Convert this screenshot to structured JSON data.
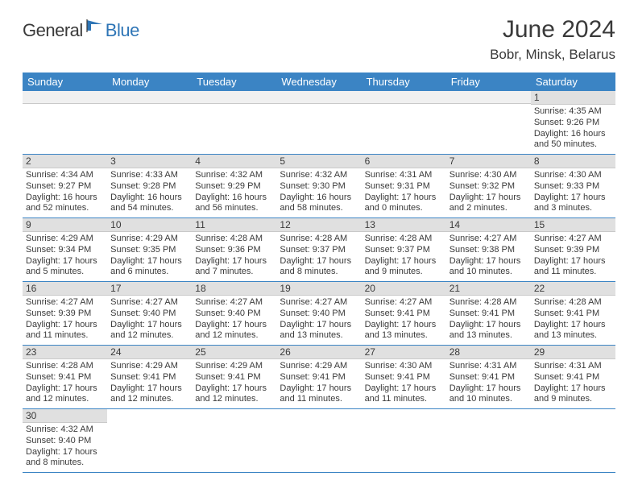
{
  "logo": {
    "general": "General",
    "blue": "Blue"
  },
  "title": "June 2024",
  "location": "Bobr, Minsk, Belarus",
  "colors": {
    "header_bg": "#3b84c4",
    "header_text": "#ffffff",
    "daynum_bg": "#e0e0e0",
    "text": "#3a3a3a",
    "rule": "#3b84c4",
    "logo_blue": "#2e75b6"
  },
  "weekdays": [
    "Sunday",
    "Monday",
    "Tuesday",
    "Wednesday",
    "Thursday",
    "Friday",
    "Saturday"
  ],
  "weeks": [
    [
      null,
      null,
      null,
      null,
      null,
      null,
      {
        "n": "1",
        "sunrise": "Sunrise: 4:35 AM",
        "sunset": "Sunset: 9:26 PM",
        "day1": "Daylight: 16 hours",
        "day2": "and 50 minutes."
      }
    ],
    [
      {
        "n": "2",
        "sunrise": "Sunrise: 4:34 AM",
        "sunset": "Sunset: 9:27 PM",
        "day1": "Daylight: 16 hours",
        "day2": "and 52 minutes."
      },
      {
        "n": "3",
        "sunrise": "Sunrise: 4:33 AM",
        "sunset": "Sunset: 9:28 PM",
        "day1": "Daylight: 16 hours",
        "day2": "and 54 minutes."
      },
      {
        "n": "4",
        "sunrise": "Sunrise: 4:32 AM",
        "sunset": "Sunset: 9:29 PM",
        "day1": "Daylight: 16 hours",
        "day2": "and 56 minutes."
      },
      {
        "n": "5",
        "sunrise": "Sunrise: 4:32 AM",
        "sunset": "Sunset: 9:30 PM",
        "day1": "Daylight: 16 hours",
        "day2": "and 58 minutes."
      },
      {
        "n": "6",
        "sunrise": "Sunrise: 4:31 AM",
        "sunset": "Sunset: 9:31 PM",
        "day1": "Daylight: 17 hours",
        "day2": "and 0 minutes."
      },
      {
        "n": "7",
        "sunrise": "Sunrise: 4:30 AM",
        "sunset": "Sunset: 9:32 PM",
        "day1": "Daylight: 17 hours",
        "day2": "and 2 minutes."
      },
      {
        "n": "8",
        "sunrise": "Sunrise: 4:30 AM",
        "sunset": "Sunset: 9:33 PM",
        "day1": "Daylight: 17 hours",
        "day2": "and 3 minutes."
      }
    ],
    [
      {
        "n": "9",
        "sunrise": "Sunrise: 4:29 AM",
        "sunset": "Sunset: 9:34 PM",
        "day1": "Daylight: 17 hours",
        "day2": "and 5 minutes."
      },
      {
        "n": "10",
        "sunrise": "Sunrise: 4:29 AM",
        "sunset": "Sunset: 9:35 PM",
        "day1": "Daylight: 17 hours",
        "day2": "and 6 minutes."
      },
      {
        "n": "11",
        "sunrise": "Sunrise: 4:28 AM",
        "sunset": "Sunset: 9:36 PM",
        "day1": "Daylight: 17 hours",
        "day2": "and 7 minutes."
      },
      {
        "n": "12",
        "sunrise": "Sunrise: 4:28 AM",
        "sunset": "Sunset: 9:37 PM",
        "day1": "Daylight: 17 hours",
        "day2": "and 8 minutes."
      },
      {
        "n": "13",
        "sunrise": "Sunrise: 4:28 AM",
        "sunset": "Sunset: 9:37 PM",
        "day1": "Daylight: 17 hours",
        "day2": "and 9 minutes."
      },
      {
        "n": "14",
        "sunrise": "Sunrise: 4:27 AM",
        "sunset": "Sunset: 9:38 PM",
        "day1": "Daylight: 17 hours",
        "day2": "and 10 minutes."
      },
      {
        "n": "15",
        "sunrise": "Sunrise: 4:27 AM",
        "sunset": "Sunset: 9:39 PM",
        "day1": "Daylight: 17 hours",
        "day2": "and 11 minutes."
      }
    ],
    [
      {
        "n": "16",
        "sunrise": "Sunrise: 4:27 AM",
        "sunset": "Sunset: 9:39 PM",
        "day1": "Daylight: 17 hours",
        "day2": "and 11 minutes."
      },
      {
        "n": "17",
        "sunrise": "Sunrise: 4:27 AM",
        "sunset": "Sunset: 9:40 PM",
        "day1": "Daylight: 17 hours",
        "day2": "and 12 minutes."
      },
      {
        "n": "18",
        "sunrise": "Sunrise: 4:27 AM",
        "sunset": "Sunset: 9:40 PM",
        "day1": "Daylight: 17 hours",
        "day2": "and 12 minutes."
      },
      {
        "n": "19",
        "sunrise": "Sunrise: 4:27 AM",
        "sunset": "Sunset: 9:40 PM",
        "day1": "Daylight: 17 hours",
        "day2": "and 13 minutes."
      },
      {
        "n": "20",
        "sunrise": "Sunrise: 4:27 AM",
        "sunset": "Sunset: 9:41 PM",
        "day1": "Daylight: 17 hours",
        "day2": "and 13 minutes."
      },
      {
        "n": "21",
        "sunrise": "Sunrise: 4:28 AM",
        "sunset": "Sunset: 9:41 PM",
        "day1": "Daylight: 17 hours",
        "day2": "and 13 minutes."
      },
      {
        "n": "22",
        "sunrise": "Sunrise: 4:28 AM",
        "sunset": "Sunset: 9:41 PM",
        "day1": "Daylight: 17 hours",
        "day2": "and 13 minutes."
      }
    ],
    [
      {
        "n": "23",
        "sunrise": "Sunrise: 4:28 AM",
        "sunset": "Sunset: 9:41 PM",
        "day1": "Daylight: 17 hours",
        "day2": "and 12 minutes."
      },
      {
        "n": "24",
        "sunrise": "Sunrise: 4:29 AM",
        "sunset": "Sunset: 9:41 PM",
        "day1": "Daylight: 17 hours",
        "day2": "and 12 minutes."
      },
      {
        "n": "25",
        "sunrise": "Sunrise: 4:29 AM",
        "sunset": "Sunset: 9:41 PM",
        "day1": "Daylight: 17 hours",
        "day2": "and 12 minutes."
      },
      {
        "n": "26",
        "sunrise": "Sunrise: 4:29 AM",
        "sunset": "Sunset: 9:41 PM",
        "day1": "Daylight: 17 hours",
        "day2": "and 11 minutes."
      },
      {
        "n": "27",
        "sunrise": "Sunrise: 4:30 AM",
        "sunset": "Sunset: 9:41 PM",
        "day1": "Daylight: 17 hours",
        "day2": "and 11 minutes."
      },
      {
        "n": "28",
        "sunrise": "Sunrise: 4:31 AM",
        "sunset": "Sunset: 9:41 PM",
        "day1": "Daylight: 17 hours",
        "day2": "and 10 minutes."
      },
      {
        "n": "29",
        "sunrise": "Sunrise: 4:31 AM",
        "sunset": "Sunset: 9:41 PM",
        "day1": "Daylight: 17 hours",
        "day2": "and 9 minutes."
      }
    ],
    [
      {
        "n": "30",
        "sunrise": "Sunrise: 4:32 AM",
        "sunset": "Sunset: 9:40 PM",
        "day1": "Daylight: 17 hours",
        "day2": "and 8 minutes."
      },
      null,
      null,
      null,
      null,
      null,
      null
    ]
  ]
}
